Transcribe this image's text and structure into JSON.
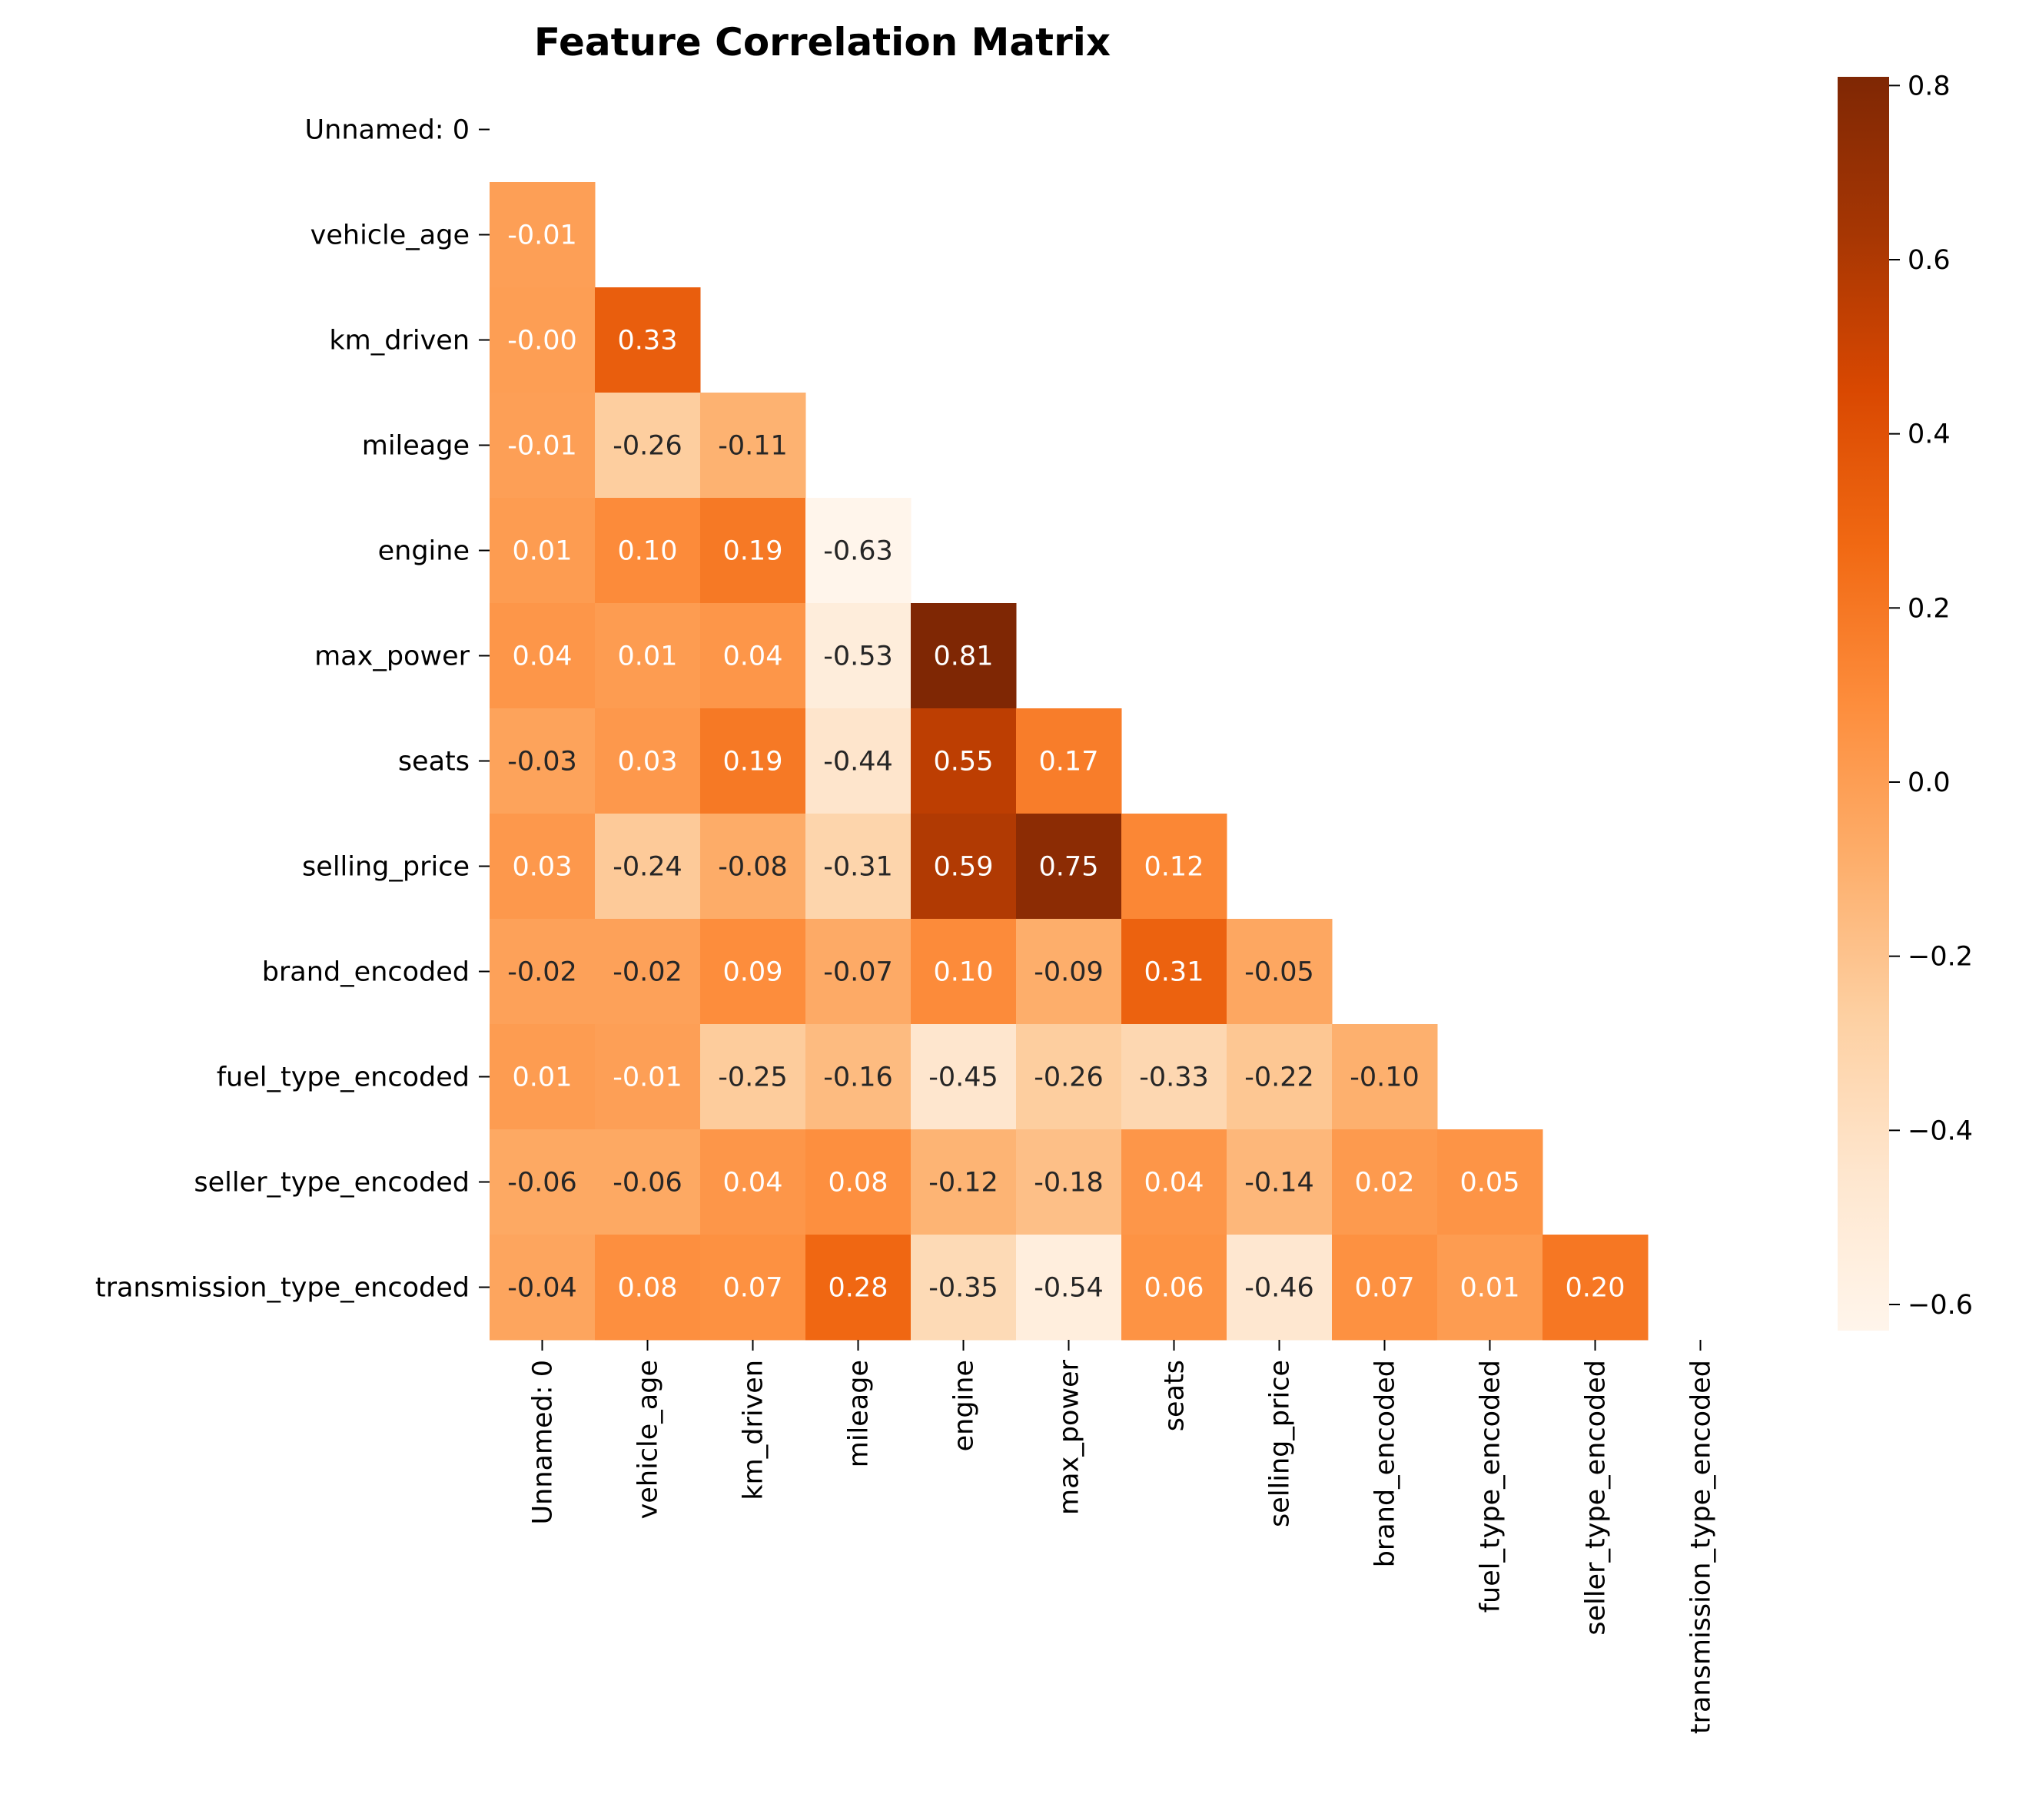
{
  "chart_data": {
    "type": "heatmap",
    "title": "Feature Correlation Matrix",
    "xlabel": "",
    "ylabel": "",
    "labels": [
      "Unnamed: 0",
      "vehicle_age",
      "km_driven",
      "mileage",
      "engine",
      "max_power",
      "seats",
      "selling_price",
      "brand_encoded",
      "fuel_type_encoded",
      "seller_type_encoded",
      "transmission_type_encoded"
    ],
    "mask": "upper-triangle-including-diagonal",
    "values": [
      [],
      [
        -0.01
      ],
      [
        -0.0,
        0.33
      ],
      [
        -0.01,
        -0.26,
        -0.11
      ],
      [
        0.01,
        0.1,
        0.19,
        -0.63
      ],
      [
        0.04,
        0.01,
        0.04,
        -0.53,
        0.81
      ],
      [
        -0.03,
        0.03,
        0.19,
        -0.44,
        0.55,
        0.17
      ],
      [
        0.03,
        -0.24,
        -0.08,
        -0.31,
        0.59,
        0.75,
        0.12
      ],
      [
        -0.02,
        -0.02,
        0.09,
        -0.07,
        0.1,
        -0.09,
        0.31,
        -0.05
      ],
      [
        0.01,
        -0.01,
        -0.25,
        -0.16,
        -0.45,
        -0.26,
        -0.33,
        -0.22,
        -0.1
      ],
      [
        -0.06,
        -0.06,
        0.04,
        0.08,
        -0.12,
        -0.18,
        0.04,
        -0.14,
        0.02,
        0.05
      ],
      [
        -0.04,
        0.08,
        0.07,
        0.28,
        -0.35,
        -0.54,
        0.06,
        -0.46,
        0.07,
        0.01,
        0.2
      ]
    ],
    "colormap": "Oranges",
    "vmin": -0.63,
    "vmax": 0.81,
    "colorbar_ticks": [
      "0.8",
      "0.6",
      "0.4",
      "0.2",
      "0.0",
      "−0.2",
      "−0.4",
      "−0.6"
    ],
    "colorbar_tick_values": [
      0.8,
      0.6,
      0.4,
      0.2,
      0.0,
      -0.2,
      -0.4,
      -0.6
    ],
    "grid": false,
    "legend": "colorbar-right"
  }
}
